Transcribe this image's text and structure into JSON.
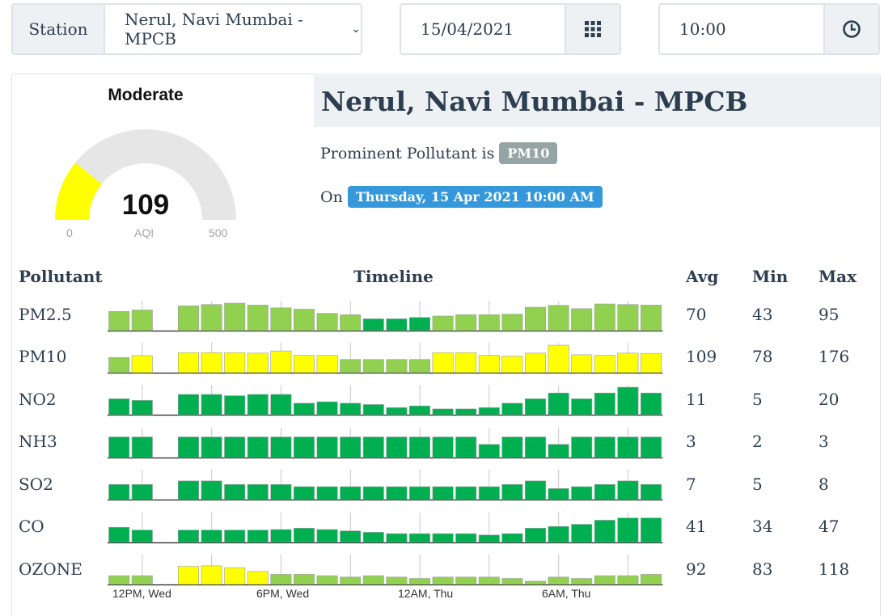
{
  "filters": {
    "station_label": "Station",
    "station_value": "Nerul, Navi Mumbai - MPCB",
    "date_value": "15/04/2021",
    "time_value": "10:00"
  },
  "gauge": {
    "category": "Moderate",
    "value": "109",
    "unit": "AQI",
    "min": "0",
    "max": "500",
    "fraction": 0.218,
    "color": "#ffff00"
  },
  "station": {
    "name": "Nerul, Navi Mumbai - MPCB",
    "prominent_prefix": "Prominent Pollutant is",
    "prominent": "PM10",
    "on_prefix": "On",
    "timestamp": "Thursday, 15 Apr 2021 10:00 AM"
  },
  "table": {
    "headers": [
      "Pollutant",
      "Timeline",
      "Avg",
      "Min",
      "Max"
    ],
    "x_ticks": [
      "12PM, Wed",
      "6PM, Wed",
      "12AM, Thu",
      "6AM, Thu"
    ],
    "rows": [
      {
        "name": "PM2.5",
        "avg": "70",
        "min": "43",
        "max": "95",
        "values": [
          0.7,
          0.75,
          null,
          0.9,
          0.95,
          1.0,
          0.93,
          0.83,
          0.78,
          0.63,
          0.58,
          0.43,
          0.43,
          0.48,
          0.53,
          0.58,
          0.58,
          0.6,
          0.85,
          0.92,
          0.8,
          0.97,
          0.95,
          0.93
        ],
        "colors": [
          "#92d050",
          "#92d050",
          null,
          "#92d050",
          "#92d050",
          "#92d050",
          "#92d050",
          "#92d050",
          "#92d050",
          "#92d050",
          "#92d050",
          "#00b050",
          "#00b050",
          "#00b050",
          "#92d050",
          "#92d050",
          "#92d050",
          "#92d050",
          "#92d050",
          "#92d050",
          "#92d050",
          "#92d050",
          "#92d050",
          "#92d050"
        ]
      },
      {
        "name": "PM10",
        "avg": "109",
        "min": "78",
        "max": "176",
        "values": [
          0.55,
          0.62,
          null,
          0.73,
          0.73,
          0.73,
          0.71,
          0.79,
          0.63,
          0.63,
          0.48,
          0.48,
          0.48,
          0.48,
          0.73,
          0.73,
          0.63,
          0.6,
          0.71,
          1.0,
          0.65,
          0.63,
          0.71,
          0.7
        ],
        "colors": [
          "#92d050",
          "#ffff00",
          null,
          "#ffff00",
          "#ffff00",
          "#ffff00",
          "#ffff00",
          "#ffff00",
          "#ffff00",
          "#ffff00",
          "#92d050",
          "#92d050",
          "#92d050",
          "#92d050",
          "#ffff00",
          "#ffff00",
          "#ffff00",
          "#ffff00",
          "#ffff00",
          "#ffff00",
          "#ffff00",
          "#ffff00",
          "#ffff00",
          "#ffff00"
        ]
      },
      {
        "name": "NO2",
        "avg": "11",
        "min": "5",
        "max": "20",
        "values": [
          0.58,
          0.52,
          null,
          0.74,
          0.74,
          0.69,
          0.74,
          0.74,
          0.42,
          0.47,
          0.42,
          0.37,
          0.26,
          0.32,
          0.21,
          0.21,
          0.26,
          0.42,
          0.58,
          0.79,
          0.58,
          0.79,
          1.0,
          0.79
        ],
        "colors": [
          "#00b050",
          "#00b050",
          null,
          "#00b050",
          "#00b050",
          "#00b050",
          "#00b050",
          "#00b050",
          "#00b050",
          "#00b050",
          "#00b050",
          "#00b050",
          "#00b050",
          "#00b050",
          "#00b050",
          "#00b050",
          "#00b050",
          "#00b050",
          "#00b050",
          "#00b050",
          "#00b050",
          "#00b050",
          "#00b050",
          "#00b050"
        ]
      },
      {
        "name": "NH3",
        "avg": "3",
        "min": "2",
        "max": "3",
        "values": [
          0.75,
          0.75,
          null,
          0.75,
          0.75,
          0.75,
          0.75,
          0.75,
          0.75,
          0.75,
          0.75,
          0.75,
          0.75,
          0.75,
          0.75,
          0.75,
          0.48,
          0.75,
          0.75,
          0.48,
          0.75,
          0.75,
          0.75,
          0.75
        ],
        "colors": [
          "#00b050",
          "#00b050",
          null,
          "#00b050",
          "#00b050",
          "#00b050",
          "#00b050",
          "#00b050",
          "#00b050",
          "#00b050",
          "#00b050",
          "#00b050",
          "#00b050",
          "#00b050",
          "#00b050",
          "#00b050",
          "#00b050",
          "#00b050",
          "#00b050",
          "#00b050",
          "#00b050",
          "#00b050",
          "#00b050",
          "#00b050"
        ]
      },
      {
        "name": "SO2",
        "avg": "7",
        "min": "5",
        "max": "8",
        "values": [
          0.55,
          0.55,
          null,
          0.68,
          0.68,
          0.55,
          0.55,
          0.55,
          0.47,
          0.47,
          0.47,
          0.47,
          0.47,
          0.47,
          0.47,
          0.47,
          0.47,
          0.55,
          0.68,
          0.4,
          0.47,
          0.55,
          0.68,
          0.55
        ],
        "colors": [
          "#00b050",
          "#00b050",
          null,
          "#00b050",
          "#00b050",
          "#00b050",
          "#00b050",
          "#00b050",
          "#00b050",
          "#00b050",
          "#00b050",
          "#00b050",
          "#00b050",
          "#00b050",
          "#00b050",
          "#00b050",
          "#00b050",
          "#00b050",
          "#00b050",
          "#00b050",
          "#00b050",
          "#00b050",
          "#00b050",
          "#00b050"
        ]
      },
      {
        "name": "CO",
        "avg": "41",
        "min": "34",
        "max": "47",
        "values": [
          0.55,
          0.45,
          null,
          0.45,
          0.45,
          0.45,
          0.45,
          0.47,
          0.52,
          0.47,
          0.42,
          0.37,
          0.32,
          0.32,
          0.32,
          0.32,
          0.27,
          0.32,
          0.52,
          0.58,
          0.66,
          0.81,
          0.89,
          0.89
        ],
        "colors": [
          "#00b050",
          "#00b050",
          null,
          "#00b050",
          "#00b050",
          "#00b050",
          "#00b050",
          "#00b050",
          "#00b050",
          "#00b050",
          "#00b050",
          "#00b050",
          "#00b050",
          "#00b050",
          "#00b050",
          "#00b050",
          "#00b050",
          "#00b050",
          "#00b050",
          "#00b050",
          "#00b050",
          "#00b050",
          "#00b050",
          "#00b050"
        ]
      },
      {
        "name": "OZONE",
        "avg": "92",
        "min": "83",
        "max": "118",
        "values": [
          0.32,
          0.32,
          null,
          0.66,
          0.68,
          0.61,
          0.47,
          0.37,
          0.37,
          0.32,
          0.27,
          0.32,
          0.27,
          0.22,
          0.27,
          0.27,
          0.27,
          0.22,
          0.12,
          0.27,
          0.22,
          0.32,
          0.32,
          0.37
        ],
        "colors": [
          "#92d050",
          "#92d050",
          null,
          "#ffff00",
          "#ffff00",
          "#ffff00",
          "#ffff00",
          "#92d050",
          "#92d050",
          "#92d050",
          "#92d050",
          "#92d050",
          "#92d050",
          "#92d050",
          "#92d050",
          "#92d050",
          "#92d050",
          "#92d050",
          "#92d050",
          "#92d050",
          "#92d050",
          "#92d050",
          "#92d050",
          "#92d050"
        ]
      }
    ]
  }
}
